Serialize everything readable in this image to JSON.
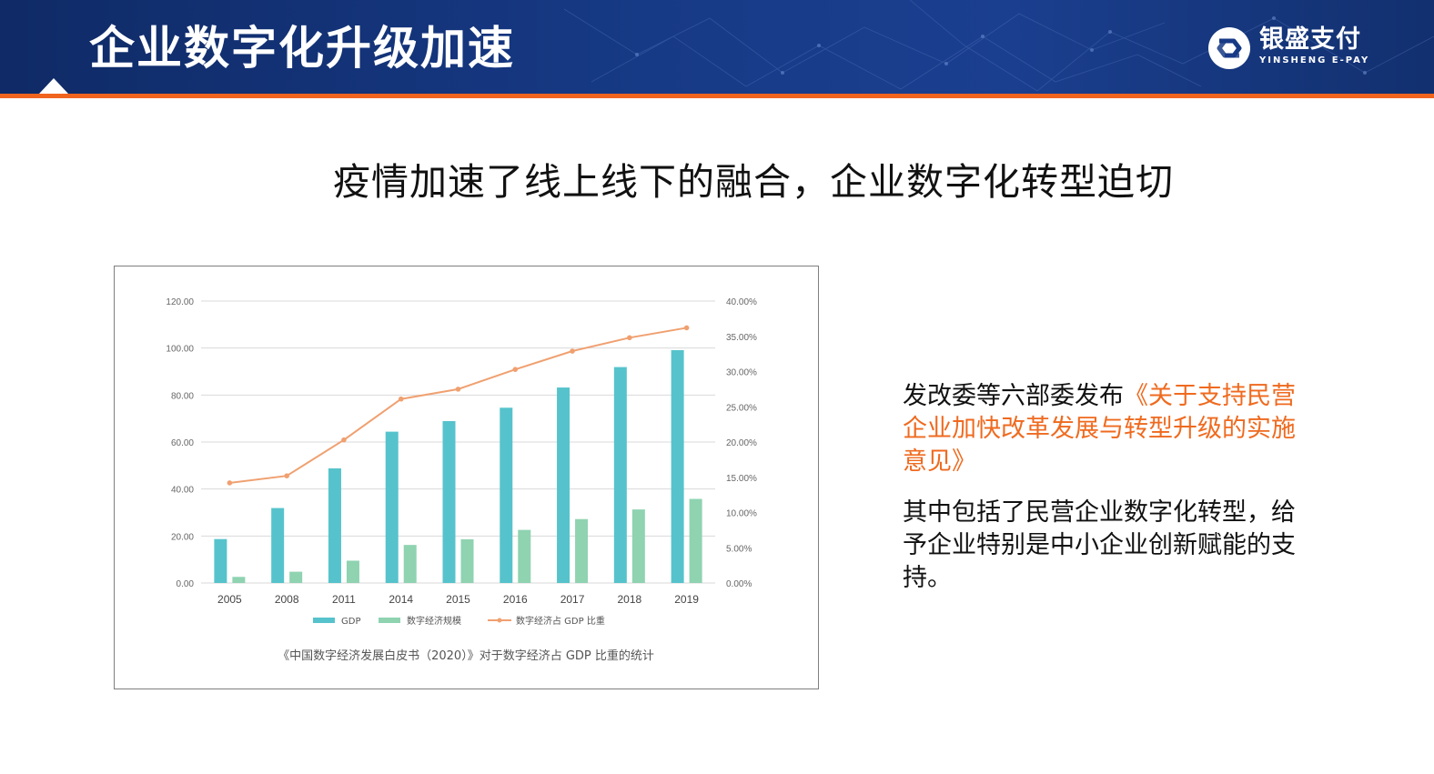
{
  "header": {
    "title": "企业数字化升级加速",
    "logo_cn": "银盛支付",
    "logo_en": "YINSHENG E-PAY"
  },
  "headline": "疫情加速了线上线下的融合，企业数字化转型迫切",
  "side_text": {
    "p1_black": "发改委等六部委发布",
    "p1_orange": "《关于支持民营企业加快改革发展与转型升级的实施意见》",
    "p2": "其中包括了民营企业数字化转型，给予企业特别是中小企业创新赋能的支持。"
  },
  "colors": {
    "header_bg": "#173a86",
    "accent_orange": "#f0641e",
    "gdp_bar": "#56c3cc",
    "digital_bar": "#8fd3b1",
    "share_line": "#f0a070"
  },
  "chart_data": {
    "type": "bar",
    "categories": [
      "2005",
      "2008",
      "2011",
      "2014",
      "2015",
      "2016",
      "2017",
      "2018",
      "2019"
    ],
    "series": [
      {
        "name": "GDP",
        "type": "bar",
        "axis": "left",
        "values": [
          18.7,
          31.9,
          48.8,
          64.4,
          68.9,
          74.6,
          83.2,
          91.9,
          99.1
        ]
      },
      {
        "name": "数字经济规模",
        "type": "bar",
        "axis": "left",
        "values": [
          2.6,
          4.8,
          9.5,
          16.2,
          18.6,
          22.6,
          27.2,
          31.3,
          35.8
        ]
      },
      {
        "name": "数字经济占 GDP 比重",
        "type": "line",
        "axis": "right",
        "values": [
          14.2,
          15.2,
          20.3,
          26.1,
          27.5,
          30.3,
          32.9,
          34.8,
          36.2
        ]
      }
    ],
    "left_ticks": [
      "120.00",
      "100.00",
      "80.00",
      "60.00",
      "40.00",
      "20.00",
      "0.00"
    ],
    "right_ticks": [
      "40.00%",
      "35.00%",
      "30.00%",
      "25.00%",
      "20.00%",
      "15.00%",
      "10.00%",
      "5.00%",
      "0.00%"
    ],
    "ylim_left": [
      0,
      120
    ],
    "ylim_right": [
      0,
      40
    ],
    "legend_position": "bottom",
    "caption": "《中国数字经济发展白皮书（2020）》对于数字经济占 GDP 比重的统计"
  }
}
